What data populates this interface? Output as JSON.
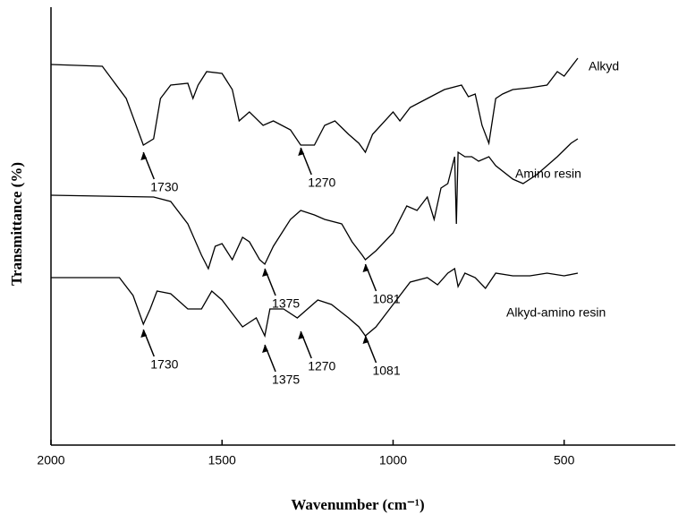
{
  "chart_data": {
    "type": "line",
    "xlabel": "Wavenumber (cm⁻¹)",
    "ylabel": "Transmittance (%)",
    "xlim": [
      2000,
      175
    ],
    "ylim": [
      0,
      489
    ],
    "xticks": [
      2000,
      1500,
      1000,
      500
    ],
    "series": [
      {
        "name": "Alkyd",
        "color": "#000000",
        "x": [
          2000,
          1850,
          1780,
          1730,
          1700,
          1680,
          1650,
          1600,
          1585,
          1570,
          1545,
          1500,
          1470,
          1450,
          1420,
          1380,
          1350,
          1300,
          1270,
          1230,
          1200,
          1170,
          1130,
          1100,
          1081,
          1060,
          1000,
          980,
          950,
          900,
          850,
          800,
          780,
          760,
          740,
          720,
          700,
          680,
          650,
          600,
          550,
          520,
          500,
          480,
          460
        ],
        "values": [
          425,
          423,
          387,
          335,
          342,
          387,
          402,
          404,
          387,
          402,
          417,
          415,
          397,
          362,
          372,
          357,
          362,
          352,
          335,
          335,
          357,
          362,
          347,
          337,
          327,
          347,
          372,
          362,
          377,
          387,
          397,
          402,
          389,
          392,
          357,
          337,
          387,
          392,
          397,
          399,
          402,
          417,
          412,
          422,
          432
        ]
      },
      {
        "name": "Amino resin",
        "color": "#000000",
        "x": [
          2000,
          1700,
          1650,
          1600,
          1560,
          1540,
          1520,
          1500,
          1470,
          1440,
          1420,
          1390,
          1375,
          1350,
          1300,
          1270,
          1230,
          1200,
          1150,
          1120,
          1090,
          1081,
          1050,
          1000,
          960,
          930,
          900,
          880,
          860,
          840,
          820,
          815,
          810,
          790,
          770,
          750,
          720,
          700,
          650,
          620,
          580,
          520,
          480,
          460
        ],
        "values": [
          279,
          277,
          272,
          247,
          212,
          197,
          222,
          225,
          207,
          232,
          227,
          207,
          202,
          222,
          252,
          262,
          257,
          252,
          247,
          227,
          212,
          207,
          217,
          237,
          267,
          262,
          277,
          252,
          287,
          292,
          322,
          247,
          327,
          322,
          322,
          317,
          322,
          312,
          297,
          292,
          302,
          322,
          337,
          342
        ]
      },
      {
        "name": "Alkyd-amino resin",
        "color": "#000000",
        "x": [
          2000,
          1800,
          1760,
          1730,
          1710,
          1690,
          1650,
          1600,
          1560,
          1530,
          1500,
          1470,
          1440,
          1420,
          1400,
          1375,
          1360,
          1320,
          1280,
          1250,
          1220,
          1180,
          1130,
          1100,
          1081,
          1050,
          1000,
          950,
          900,
          870,
          840,
          820,
          810,
          790,
          760,
          730,
          700,
          650,
          600,
          550,
          500,
          460
        ],
        "values": [
          187,
          187,
          167,
          135,
          152,
          172,
          169,
          152,
          152,
          172,
          162,
          147,
          132,
          137,
          142,
          122,
          152,
          152,
          142,
          152,
          162,
          157,
          142,
          132,
          122,
          132,
          157,
          182,
          187,
          179,
          192,
          197,
          177,
          192,
          187,
          175,
          192,
          189,
          189,
          192,
          189,
          192
        ]
      }
    ],
    "annotations": [
      {
        "text": "1730",
        "x": 1730,
        "y": 327
      },
      {
        "text": "1270",
        "x": 1270,
        "y": 332
      },
      {
        "text": "1375",
        "x": 1375,
        "y": 197
      },
      {
        "text": "1081",
        "x": 1081,
        "y": 202
      },
      {
        "text": "1730",
        "x": 1730,
        "y": 129
      },
      {
        "text": "1375",
        "x": 1375,
        "y": 112
      },
      {
        "text": "1270",
        "x": 1270,
        "y": 127
      },
      {
        "text": "1081",
        "x": 1081,
        "y": 122
      }
    ]
  }
}
